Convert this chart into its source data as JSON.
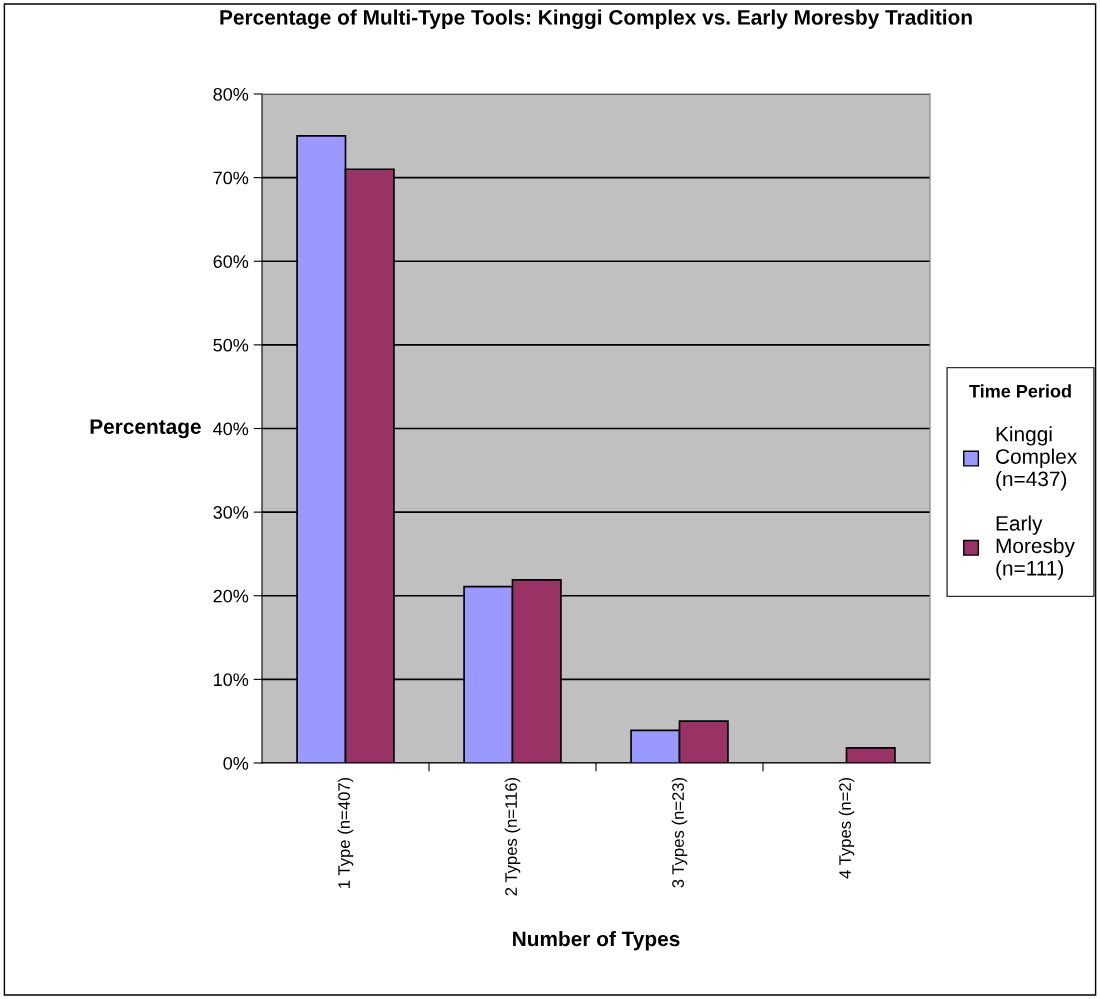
{
  "chart_data": {
    "type": "bar",
    "title": "Percentage of Multi-Type Tools: Kinggi Complex vs. Early Moresby Tradition",
    "xlabel": "Number of Types",
    "ylabel": "Percentage",
    "legend_title": "Time Period",
    "categories": [
      "1 Type (n=407)",
      "2 Types (n=116)",
      "3 Types (n=23)",
      "4 Types (n=2)"
    ],
    "series": [
      {
        "name": "Kinggi Complex (n=437)",
        "color": "#9999ff",
        "values": [
          75,
          21.1,
          3.9,
          null
        ]
      },
      {
        "name": "Early Moresby (n=111)",
        "color": "#993366",
        "values": [
          71,
          21.9,
          5.0,
          1.8
        ]
      }
    ],
    "ylim": [
      0,
      80
    ],
    "yticks": [
      {
        "value": 0,
        "label": "0%"
      },
      {
        "value": 10,
        "label": "10%"
      },
      {
        "value": 20,
        "label": "20%"
      },
      {
        "value": 30,
        "label": "30%"
      },
      {
        "value": 40,
        "label": "40%"
      },
      {
        "value": 50,
        "label": "50%"
      },
      {
        "value": 60,
        "label": "60%"
      },
      {
        "value": 70,
        "label": "70%"
      },
      {
        "value": 80,
        "label": "80%"
      }
    ],
    "grid": "y",
    "legend": "right"
  }
}
